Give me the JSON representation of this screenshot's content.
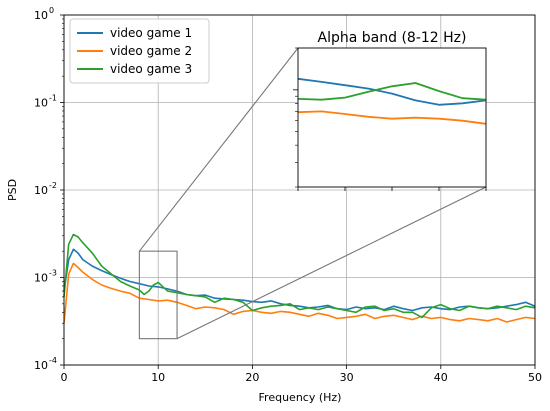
{
  "chart_data": [
    {
      "type": "line",
      "title": "",
      "xlabel": "Frequency (Hz)",
      "ylabel": "PSD",
      "yscale": "log",
      "xlim": [
        0,
        50
      ],
      "ylim": [
        0.0001,
        1
      ],
      "xticks": [
        "0",
        "10",
        "20",
        "30",
        "40",
        "50"
      ],
      "yticks": [
        "10^-4",
        "10^-3",
        "10^-2",
        "10^-1",
        "10^0"
      ],
      "grid": true,
      "legend_position": "top-left",
      "zoom_box": {
        "x_range": [
          8,
          12
        ],
        "y_range": [
          0.0002,
          0.002
        ]
      },
      "series": [
        {
          "name": "video game 1",
          "color": "#1f77b4",
          "x": [
            0,
            0.5,
            1,
            1.5,
            2,
            3,
            4,
            5,
            6,
            7,
            8,
            9,
            10,
            11,
            12,
            13,
            14,
            15,
            16,
            17,
            18,
            19,
            20,
            21,
            22,
            23,
            24,
            25,
            26,
            27,
            28,
            29,
            30,
            31,
            32,
            33,
            34,
            35,
            36,
            37,
            38,
            39,
            40,
            41,
            42,
            43,
            44,
            45,
            46,
            47,
            48,
            49,
            50
          ],
          "y": [
            0.0007,
            0.0016,
            0.0021,
            0.0019,
            0.0016,
            0.00135,
            0.0012,
            0.00108,
            0.00098,
            0.0009,
            0.00085,
            0.0008,
            0.00078,
            0.00074,
            0.0007,
            0.00064,
            0.00062,
            0.00063,
            0.00058,
            0.00057,
            0.00056,
            0.00055,
            0.00053,
            0.00052,
            0.00054,
            0.0005,
            0.00048,
            0.00047,
            0.00045,
            0.00046,
            0.00048,
            0.00044,
            0.00043,
            0.00046,
            0.00044,
            0.00045,
            0.00043,
            0.00047,
            0.00044,
            0.00042,
            0.00045,
            0.00046,
            0.00044,
            0.00043,
            0.00046,
            0.00047,
            0.00045,
            0.00044,
            0.00045,
            0.00047,
            0.00049,
            0.00052,
            0.00047
          ]
        },
        {
          "name": "video game 2",
          "color": "#ff7f0e",
          "x": [
            0,
            0.5,
            1,
            1.5,
            2,
            3,
            4,
            5,
            6,
            7,
            8,
            9,
            10,
            11,
            12,
            13,
            14,
            15,
            16,
            17,
            18,
            19,
            20,
            21,
            22,
            23,
            24,
            25,
            26,
            27,
            28,
            29,
            30,
            31,
            32,
            33,
            34,
            35,
            36,
            37,
            38,
            39,
            40,
            41,
            42,
            43,
            44,
            45,
            46,
            47,
            48,
            49,
            50
          ],
          "y": [
            0.0003,
            0.0011,
            0.00145,
            0.0013,
            0.00115,
            0.00095,
            0.00082,
            0.00075,
            0.0007,
            0.00066,
            0.00058,
            0.00056,
            0.00054,
            0.00055,
            0.00052,
            0.00048,
            0.00044,
            0.00046,
            0.00045,
            0.00043,
            0.00038,
            0.00041,
            0.00042,
            0.0004,
            0.00039,
            0.00041,
            0.0004,
            0.00038,
            0.00036,
            0.00039,
            0.00037,
            0.00034,
            0.00035,
            0.00036,
            0.00038,
            0.00034,
            0.00036,
            0.00037,
            0.00035,
            0.00033,
            0.00036,
            0.00034,
            0.00035,
            0.00033,
            0.00032,
            0.00034,
            0.00033,
            0.00032,
            0.00034,
            0.00031,
            0.00033,
            0.00035,
            0.00034
          ]
        },
        {
          "name": "video game 3",
          "color": "#2ca02c",
          "x": [
            0,
            0.5,
            1,
            1.5,
            2,
            3,
            4,
            5,
            6,
            7,
            8,
            8.5,
            9,
            9.5,
            10,
            11,
            12,
            13,
            14,
            15,
            16,
            17,
            18,
            19,
            20,
            21,
            22,
            23,
            24,
            25,
            26,
            27,
            28,
            29,
            30,
            31,
            32,
            33,
            34,
            35,
            36,
            37,
            38,
            39,
            40,
            41,
            42,
            43,
            44,
            45,
            46,
            47,
            48,
            49,
            50
          ],
          "y": [
            0.0006,
            0.0024,
            0.0031,
            0.0029,
            0.0025,
            0.0019,
            0.00135,
            0.0011,
            0.0009,
            0.0008,
            0.00072,
            0.00064,
            0.0007,
            0.00082,
            0.00088,
            0.0007,
            0.00067,
            0.00064,
            0.00062,
            0.0006,
            0.00052,
            0.00058,
            0.00056,
            0.00052,
            0.00042,
            0.00045,
            0.00047,
            0.00048,
            0.0005,
            0.00043,
            0.00045,
            0.00043,
            0.00046,
            0.00044,
            0.00042,
            0.0004,
            0.00046,
            0.00047,
            0.00042,
            0.00044,
            0.0004,
            0.0004,
            0.00035,
            0.00045,
            0.00049,
            0.00044,
            0.00042,
            0.00047,
            0.00045,
            0.00044,
            0.00047,
            0.00045,
            0.00043,
            0.00047,
            0.00045
          ]
        }
      ]
    },
    {
      "type": "line",
      "title": "Alpha band (8-12 Hz)",
      "xlabel": "",
      "ylabel": "",
      "yscale": "log",
      "xlim": [
        8,
        12
      ],
      "ylim": [
        0.0002,
        0.002
      ],
      "grid": false,
      "series": [
        {
          "name": "video game 1",
          "color": "#1f77b4",
          "x": [
            8,
            8.5,
            9,
            9.5,
            10,
            10.5,
            11,
            11.5,
            12
          ],
          "y": [
            0.0012,
            0.00114,
            0.00108,
            0.00102,
            0.00094,
            0.00084,
            0.00078,
            0.0008,
            0.00084
          ]
        },
        {
          "name": "video game 2",
          "color": "#ff7f0e",
          "x": [
            8,
            8.5,
            9,
            9.5,
            10,
            10.5,
            11,
            11.5,
            12
          ],
          "y": [
            0.00069,
            0.0007,
            0.00067,
            0.00064,
            0.00062,
            0.00063,
            0.00062,
            0.0006,
            0.00057
          ]
        },
        {
          "name": "video game 3",
          "color": "#2ca02c",
          "x": [
            8,
            8.5,
            9,
            9.5,
            10,
            10.5,
            11,
            11.5,
            12
          ],
          "y": [
            0.00086,
            0.00085,
            0.00088,
            0.00097,
            0.00106,
            0.00112,
            0.00098,
            0.00087,
            0.00085
          ]
        }
      ]
    }
  ]
}
